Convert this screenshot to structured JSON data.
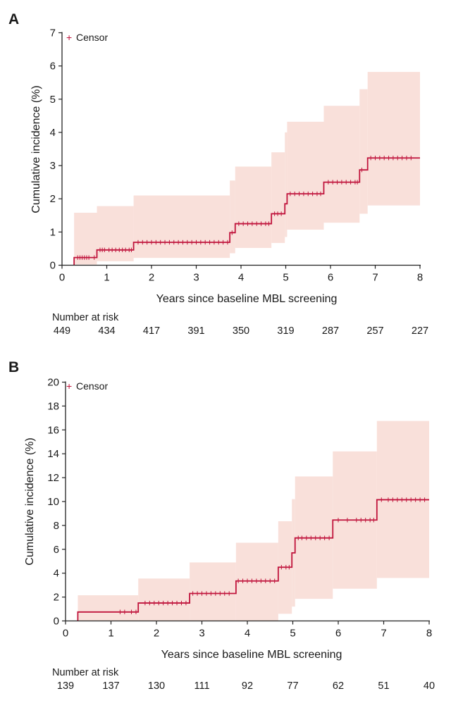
{
  "chart_data": [
    {
      "panel": "A",
      "type": "line",
      "title": "",
      "xlabel": "Years since baseline MBL screening",
      "ylabel": "Cumulative incidence (%)",
      "xlim": [
        0,
        8
      ],
      "ylim": [
        0,
        7
      ],
      "xticks": [
        0,
        1,
        2,
        3,
        4,
        5,
        6,
        7,
        8
      ],
      "yticks": [
        0,
        1,
        2,
        3,
        4,
        5,
        6,
        7
      ],
      "legend": {
        "label": "Censor",
        "symbol": "+",
        "position": "top-left"
      },
      "colors": {
        "line": "#c0143c",
        "band": "#f9e0da"
      },
      "step_curve": [
        {
          "x": 0.27,
          "y": 0.0
        },
        {
          "x": 0.27,
          "y": 0.23
        },
        {
          "x": 0.78,
          "y": 0.23
        },
        {
          "x": 0.78,
          "y": 0.46
        },
        {
          "x": 1.6,
          "y": 0.46
        },
        {
          "x": 1.6,
          "y": 0.69
        },
        {
          "x": 3.75,
          "y": 0.69
        },
        {
          "x": 3.75,
          "y": 0.98
        },
        {
          "x": 3.87,
          "y": 0.98
        },
        {
          "x": 3.87,
          "y": 1.25
        },
        {
          "x": 4.68,
          "y": 1.25
        },
        {
          "x": 4.68,
          "y": 1.55
        },
        {
          "x": 4.98,
          "y": 1.55
        },
        {
          "x": 4.98,
          "y": 1.85
        },
        {
          "x": 5.03,
          "y": 1.85
        },
        {
          "x": 5.03,
          "y": 2.15
        },
        {
          "x": 5.85,
          "y": 2.15
        },
        {
          "x": 5.85,
          "y": 2.5
        },
        {
          "x": 6.65,
          "y": 2.5
        },
        {
          "x": 6.65,
          "y": 2.87
        },
        {
          "x": 6.83,
          "y": 2.87
        },
        {
          "x": 6.83,
          "y": 3.23
        },
        {
          "x": 8.0,
          "y": 3.23
        }
      ],
      "confidence_band": {
        "steps": [
          {
            "x": 0.27,
            "lower": 0.02,
            "upper": 1.58
          },
          {
            "x": 0.78,
            "lower": 0.12,
            "upper": 1.78
          },
          {
            "x": 1.6,
            "lower": 0.22,
            "upper": 2.1
          },
          {
            "x": 3.75,
            "lower": 0.36,
            "upper": 2.55
          },
          {
            "x": 3.87,
            "lower": 0.52,
            "upper": 2.97
          },
          {
            "x": 4.68,
            "lower": 0.67,
            "upper": 3.4
          },
          {
            "x": 4.98,
            "lower": 0.85,
            "upper": 4.0
          },
          {
            "x": 5.03,
            "lower": 1.07,
            "upper": 4.32
          },
          {
            "x": 5.85,
            "lower": 1.28,
            "upper": 4.8
          },
          {
            "x": 6.65,
            "lower": 1.55,
            "upper": 5.3
          },
          {
            "x": 6.83,
            "lower": 1.8,
            "upper": 5.82
          }
        ],
        "end_x": 8.0
      },
      "censor_times": [
        0.35,
        0.4,
        0.45,
        0.5,
        0.55,
        0.6,
        0.72,
        0.85,
        0.9,
        0.95,
        1.05,
        1.12,
        1.2,
        1.28,
        1.35,
        1.42,
        1.5,
        1.55,
        1.7,
        1.8,
        1.9,
        2.0,
        2.1,
        2.2,
        2.3,
        2.4,
        2.5,
        2.6,
        2.7,
        2.8,
        2.9,
        3.0,
        3.1,
        3.2,
        3.3,
        3.4,
        3.5,
        3.6,
        3.7,
        3.8,
        3.95,
        4.05,
        4.15,
        4.25,
        4.35,
        4.45,
        4.55,
        4.62,
        4.75,
        4.82,
        4.9,
        5.1,
        5.2,
        5.3,
        5.4,
        5.5,
        5.6,
        5.7,
        5.78,
        5.95,
        6.05,
        6.15,
        6.25,
        6.35,
        6.45,
        6.55,
        6.6,
        6.7,
        6.9,
        7.0,
        7.1,
        7.2,
        7.3,
        7.4,
        7.5,
        7.6,
        7.7,
        7.8
      ],
      "risk_table": {
        "label": "Number at risk",
        "times": [
          0,
          1,
          2,
          3,
          4,
          5,
          6,
          7,
          8
        ],
        "values": [
          449,
          434,
          417,
          391,
          350,
          319,
          287,
          257,
          227
        ]
      }
    },
    {
      "panel": "B",
      "type": "line",
      "title": "",
      "xlabel": "Years since baseline MBL screening",
      "ylabel": "Cumulative incidence (%)",
      "xlim": [
        0,
        8
      ],
      "ylim": [
        0,
        20
      ],
      "xticks": [
        0,
        1,
        2,
        3,
        4,
        5,
        6,
        7,
        8
      ],
      "yticks": [
        0,
        2,
        4,
        6,
        8,
        10,
        12,
        14,
        16,
        18,
        20
      ],
      "legend": {
        "label": "Censor",
        "symbol": "+",
        "position": "top-left"
      },
      "colors": {
        "line": "#c0143c",
        "band": "#f9e0da"
      },
      "step_curve": [
        {
          "x": 0.27,
          "y": 0.0
        },
        {
          "x": 0.27,
          "y": 0.75
        },
        {
          "x": 1.6,
          "y": 0.75
        },
        {
          "x": 1.6,
          "y": 1.5
        },
        {
          "x": 2.73,
          "y": 1.5
        },
        {
          "x": 2.73,
          "y": 2.3
        },
        {
          "x": 3.75,
          "y": 2.3
        },
        {
          "x": 3.75,
          "y": 3.35
        },
        {
          "x": 4.68,
          "y": 3.35
        },
        {
          "x": 4.68,
          "y": 4.5
        },
        {
          "x": 4.98,
          "y": 4.5
        },
        {
          "x": 4.98,
          "y": 5.7
        },
        {
          "x": 5.05,
          "y": 5.7
        },
        {
          "x": 5.05,
          "y": 6.95
        },
        {
          "x": 5.88,
          "y": 6.95
        },
        {
          "x": 5.88,
          "y": 8.45
        },
        {
          "x": 6.85,
          "y": 8.45
        },
        {
          "x": 6.85,
          "y": 10.15
        },
        {
          "x": 8.0,
          "y": 10.15
        }
      ],
      "confidence_band": {
        "steps": [
          {
            "x": 0.27,
            "lower": 0.0,
            "upper": 2.15
          },
          {
            "x": 1.6,
            "lower": 0.0,
            "upper": 3.55
          },
          {
            "x": 2.73,
            "lower": 0.0,
            "upper": 4.9
          },
          {
            "x": 3.75,
            "lower": 0.0,
            "upper": 6.55
          },
          {
            "x": 4.68,
            "lower": 0.6,
            "upper": 8.35
          },
          {
            "x": 4.98,
            "lower": 1.2,
            "upper": 10.2
          },
          {
            "x": 5.05,
            "lower": 1.85,
            "upper": 12.1
          },
          {
            "x": 5.88,
            "lower": 2.7,
            "upper": 14.2
          },
          {
            "x": 6.85,
            "lower": 3.6,
            "upper": 16.75
          }
        ],
        "end_x": 8.0
      },
      "censor_times": [
        1.2,
        1.3,
        1.45,
        1.55,
        1.75,
        1.85,
        1.95,
        2.05,
        2.15,
        2.25,
        2.35,
        2.45,
        2.55,
        2.65,
        2.8,
        2.9,
        3.0,
        3.1,
        3.2,
        3.3,
        3.4,
        3.5,
        3.6,
        3.8,
        3.9,
        4.0,
        4.1,
        4.2,
        4.3,
        4.4,
        4.5,
        4.6,
        4.75,
        4.85,
        4.92,
        5.12,
        5.2,
        5.3,
        5.4,
        5.5,
        5.6,
        5.7,
        5.8,
        6.0,
        6.2,
        6.4,
        6.5,
        6.6,
        6.7,
        6.78,
        6.95,
        7.1,
        7.2,
        7.3,
        7.4,
        7.5,
        7.6,
        7.7,
        7.8,
        7.9
      ],
      "risk_table": {
        "label": "Number at risk",
        "times": [
          0,
          1,
          2,
          3,
          4,
          5,
          6,
          7,
          8
        ],
        "values": [
          139,
          137,
          130,
          111,
          92,
          77,
          62,
          51,
          40
        ]
      }
    }
  ]
}
